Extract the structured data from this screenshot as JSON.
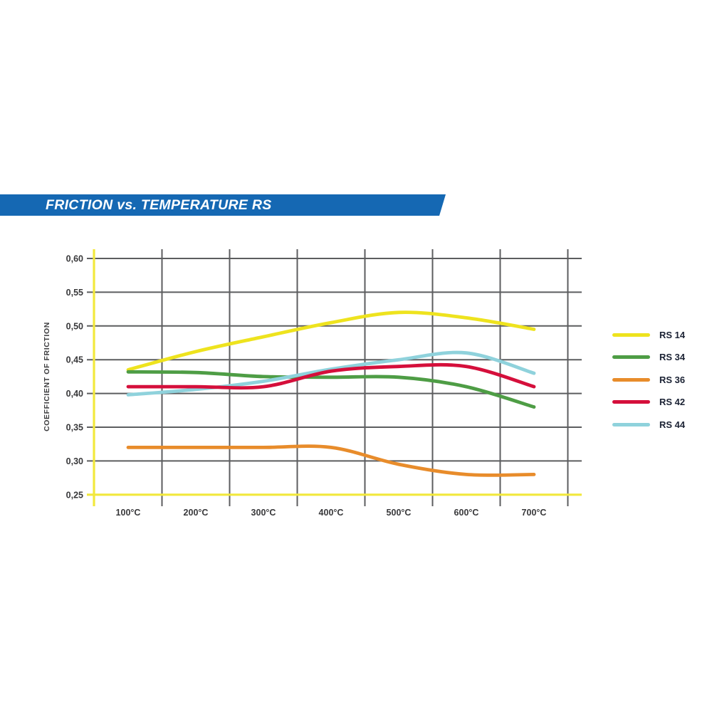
{
  "banner": {
    "title": "FRICTION vs. TEMPERATURE RS",
    "bg_color": "#1568b3",
    "text_color": "#ffffff"
  },
  "chart_data": {
    "type": "line",
    "title": "FRICTION vs. TEMPERATURE RS",
    "xlabel": "",
    "ylabel": "COEFFICIENT OF FRICTION",
    "categories": [
      "100°C",
      "200°C",
      "300°C",
      "400°C",
      "500°C",
      "600°C",
      "700°C"
    ],
    "y_tick_labels": [
      "0,60",
      "0,55",
      "0,50",
      "0,45",
      "0,40",
      "0,35",
      "0,30",
      "0,25"
    ],
    "ylim": [
      0.25,
      0.6
    ],
    "y_tick_step": 0.05,
    "grid": true,
    "legend_position": "right",
    "axis_color": "#f2e83c",
    "grid_color": "#5c5d5f",
    "tick_label_color": "#38383a",
    "series": [
      {
        "name": "RS 14",
        "color": "#eee31e",
        "values": [
          0.435,
          0.462,
          0.484,
          0.505,
          0.52,
          0.512,
          0.495
        ]
      },
      {
        "name": "RS 34",
        "color": "#4e9d45",
        "values": [
          0.432,
          0.431,
          0.425,
          0.424,
          0.424,
          0.41,
          0.38
        ]
      },
      {
        "name": "RS 36",
        "color": "#e88c2b",
        "values": [
          0.32,
          0.32,
          0.32,
          0.32,
          0.295,
          0.28,
          0.28
        ]
      },
      {
        "name": "RS 42",
        "color": "#d50f3b",
        "values": [
          0.41,
          0.41,
          0.41,
          0.433,
          0.44,
          0.44,
          0.41
        ]
      },
      {
        "name": "RS 44",
        "color": "#8fd2dc",
        "values": [
          0.398,
          0.406,
          0.418,
          0.436,
          0.45,
          0.46,
          0.43
        ]
      }
    ]
  }
}
